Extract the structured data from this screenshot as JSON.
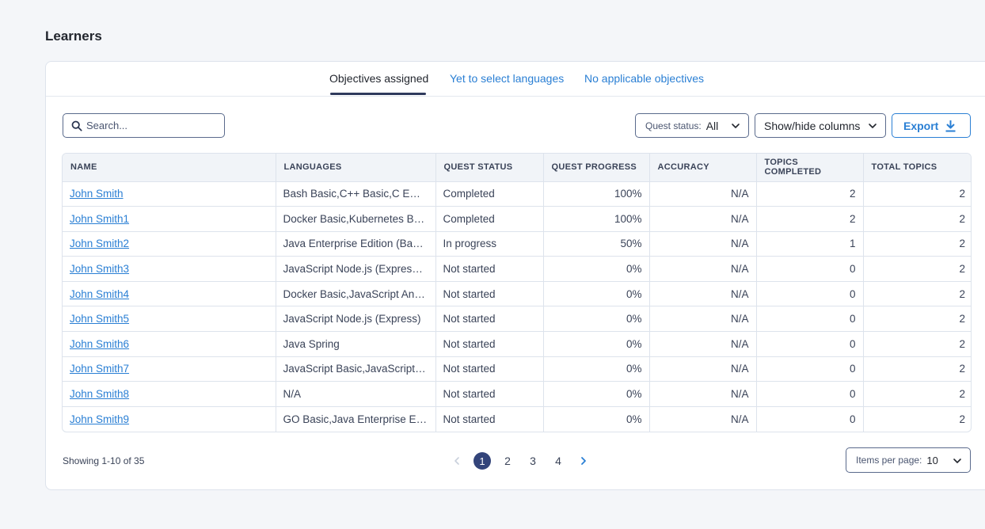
{
  "page": {
    "title": "Learners"
  },
  "tabs": [
    {
      "label": "Objectives assigned",
      "active": true
    },
    {
      "label": "Yet to select languages",
      "active": false
    },
    {
      "label": "No applicable objectives",
      "active": false
    }
  ],
  "toolbar": {
    "search_placeholder": "Search...",
    "quest_status_label": "Quest status:",
    "quest_status_value": "All",
    "show_hide_label": "Show/hide columns",
    "export_label": "Export"
  },
  "table": {
    "headers": [
      "NAME",
      "LANGUAGES",
      "QUEST STATUS",
      "QUEST PROGRESS",
      "ACCURACY",
      "TOPICS COMPLETED",
      "TOTAL TOPICS"
    ],
    "rows": [
      [
        "John Smith",
        "Bash Basic,C++ Basic,C Embedded",
        "Completed",
        "100%",
        "N/A",
        "2",
        "2"
      ],
      [
        "John Smith1",
        "Docker Basic,Kubernetes Basic",
        "Completed",
        "100%",
        "N/A",
        "2",
        "2"
      ],
      [
        "John Smith2",
        "Java Enterprise Edition (Basic)",
        "In progress",
        "50%",
        "N/A",
        "1",
        "2"
      ],
      [
        "John Smith3",
        "JavaScript Node.js (Express),JavaScript",
        "Not started",
        "0%",
        "N/A",
        "0",
        "2"
      ],
      [
        "John Smith4",
        "Docker Basic,JavaScript Angular",
        "Not started",
        "0%",
        "N/A",
        "0",
        "2"
      ],
      [
        "John Smith5",
        "JavaScript Node.js (Express)",
        "Not started",
        "0%",
        "N/A",
        "0",
        "2"
      ],
      [
        "John Smith6",
        "Java Spring",
        "Not started",
        "0%",
        "N/A",
        "0",
        "2"
      ],
      [
        "John Smith7",
        "JavaScript Basic,JavaScript Node.js",
        "Not started",
        "0%",
        "N/A",
        "0",
        "2"
      ],
      [
        "John Smith8",
        "N/A",
        "Not started",
        "0%",
        "N/A",
        "0",
        "2"
      ],
      [
        "John Smith9",
        "GO Basic,Java Enterprise Edition",
        "Not started",
        "0%",
        "N/A",
        "0",
        "2"
      ]
    ]
  },
  "footer": {
    "showing": "Showing 1-10 of 35",
    "pages": [
      "1",
      "2",
      "3",
      "4"
    ],
    "current_page": "1",
    "items_per_page_label": "Items per page:",
    "items_per_page_value": "10"
  },
  "icons": {
    "search": "search-icon",
    "chevron": "chevron-down-icon",
    "export": "download-icon",
    "prev": "chevron-left-icon",
    "next": "chevron-right-icon"
  },
  "colors": {
    "accent": "#2a7fd4",
    "active_page": "#33447a",
    "tab_underline": "#2f3a5c"
  }
}
